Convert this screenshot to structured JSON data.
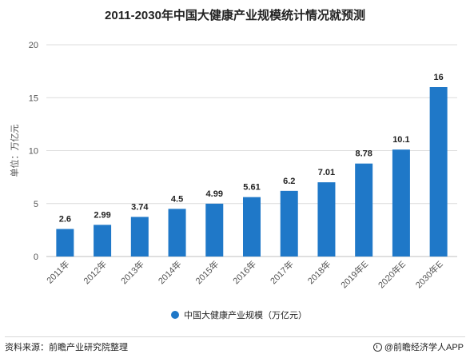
{
  "chart_data": {
    "type": "bar",
    "title": "2011-2030年中国大健康产业规模统计情况就预测",
    "ylabel": "单位：万亿元",
    "xlabel": "",
    "categories": [
      "2011年",
      "2012年",
      "2013年",
      "2014年",
      "2015年",
      "2016年",
      "2017年",
      "2018年",
      "2019年E",
      "2020年E",
      "2030年E"
    ],
    "series": [
      {
        "name": "中国大健康产业规模（万亿元）",
        "values": [
          2.6,
          2.99,
          3.74,
          4.5,
          4.99,
          5.61,
          6.2,
          7.01,
          8.78,
          10.1,
          16
        ],
        "value_labels": [
          "2.6",
          "2.99",
          "3.74",
          "4.5",
          "4.99",
          "5.61",
          "6.2",
          "7.01",
          "8.78",
          "10.1",
          "16"
        ]
      }
    ],
    "ylim": [
      0,
      20
    ],
    "yticks": [
      "0",
      "5",
      "10",
      "15",
      "20"
    ],
    "grid": true,
    "legend_position": "bottom",
    "bar_color": "#1f78c8",
    "grid_color": "#dcdcdc"
  },
  "footer": {
    "source": "资料来源：前瞻产业研究院整理",
    "brand": "@前瞻经济学人APP"
  }
}
